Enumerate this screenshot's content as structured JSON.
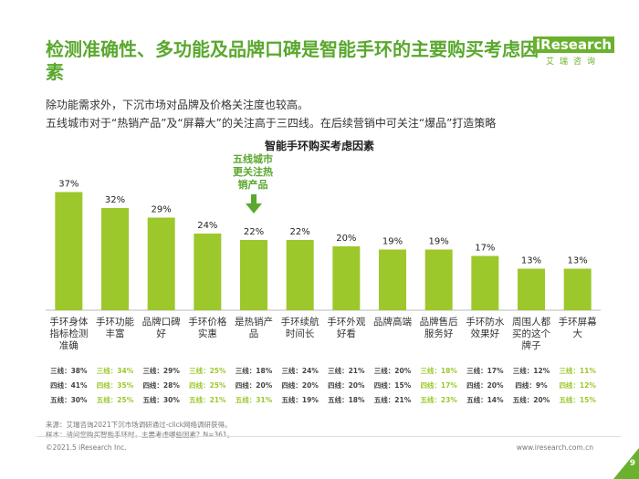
{
  "header": {
    "title": "检测准确性、多功能及品牌口碑是智能手环的主要购买考虑因素",
    "logo": "iResearch",
    "logo_sub": "艾瑞咨询",
    "subtitle_line1": "除功能需求外，下沉市场对品牌及价格关注度也较高。",
    "subtitle_line2": "五线城市对于“热销产品”及“屏幕大”的关注高于三四线。在后续营销中可关注“爆品”打造策略"
  },
  "callout": "五线城市更关注热销产品",
  "footer": {
    "source_line1": "来源：艾瑞咨询2021下沉市场调研通过-click网络调研获得。",
    "source_line2": "样本：请问您购买智能手环时，主要考虑哪些因素？N=361。",
    "copyright": "©2021.5 iResearch Inc.",
    "website": "www.iresearch.com.cn",
    "page_number": "9"
  },
  "colors": {
    "bar": "#9cc82c",
    "highlight_text": "#9cc82c",
    "title_green": "#5aa82e",
    "arrow": "#5aa82e"
  },
  "chart_data": {
    "type": "bar",
    "title": "智能手环购买考虑因素",
    "categories": [
      "手环身体指标检测准确",
      "手环功能丰富",
      "品牌口碑好",
      "手环价格实惠",
      "是热销产品",
      "手环续航时间长",
      "手环外观好看",
      "品牌高端",
      "品牌售后服务好",
      "手环防水效果好",
      "周围人都买的这个牌子",
      "手环屏幕大"
    ],
    "values": [
      37,
      32,
      29,
      24,
      22,
      22,
      20,
      19,
      19,
      17,
      13,
      13
    ],
    "value_labels": [
      "37%",
      "32%",
      "29%",
      "24%",
      "22%",
      "22%",
      "20%",
      "19%",
      "19%",
      "17%",
      "13%",
      "13%"
    ],
    "ylim": [
      0,
      40
    ],
    "grid": false,
    "breakdown": [
      {
        "prefix": "三线：",
        "values": [
          "38%",
          "34%",
          "29%",
          "25%",
          "18%",
          "24%",
          "21%",
          "20%",
          "18%",
          "17%",
          "12%",
          "11%"
        ],
        "highlight": [
          false,
          true,
          false,
          true,
          false,
          false,
          false,
          false,
          true,
          false,
          false,
          true
        ]
      },
      {
        "prefix": "四线：",
        "values": [
          "41%",
          "35%",
          "28%",
          "25%",
          "20%",
          "20%",
          "20%",
          "15%",
          "17%",
          "20%",
          "9%",
          "12%"
        ],
        "highlight": [
          false,
          true,
          false,
          true,
          false,
          false,
          false,
          false,
          true,
          false,
          false,
          true
        ]
      },
      {
        "prefix": "五线：",
        "values": [
          "30%",
          "25%",
          "30%",
          "21%",
          "31%",
          "19%",
          "18%",
          "21%",
          "23%",
          "14%",
          "20%",
          "15%"
        ],
        "highlight": [
          false,
          true,
          false,
          true,
          true,
          false,
          false,
          false,
          true,
          false,
          false,
          true
        ]
      }
    ]
  }
}
